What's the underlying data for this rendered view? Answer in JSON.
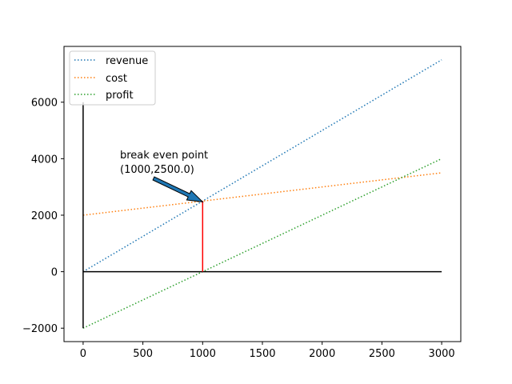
{
  "chart_data": {
    "type": "line",
    "title": "",
    "xlabel": "",
    "ylabel": "",
    "xlim": [
      -160,
      3160
    ],
    "ylim": [
      -2475,
      7975
    ],
    "x_ticks": [
      0,
      500,
      1000,
      1500,
      2000,
      2500,
      3000
    ],
    "x_tick_labels": [
      "0",
      "500",
      "1000",
      "1500",
      "2000",
      "2500",
      "3000"
    ],
    "y_ticks": [
      -2000,
      0,
      2000,
      4000,
      6000
    ],
    "y_tick_labels": [
      "−2000",
      "0",
      "2000",
      "4000",
      "6000"
    ],
    "grid": false,
    "legend_position": "upper-left",
    "series": [
      {
        "name": "revenue",
        "color": "#1f77b4",
        "style": "dotted",
        "x": [
          0,
          3000
        ],
        "y": [
          0,
          7500
        ]
      },
      {
        "name": "cost",
        "color": "#ff7f0e",
        "style": "dotted",
        "x": [
          0,
          3000
        ],
        "y": [
          2000,
          3500
        ]
      },
      {
        "name": "profit",
        "color": "#2ca02c",
        "style": "dotted",
        "x": [
          0,
          3000
        ],
        "y": [
          -2000,
          4000
        ]
      }
    ],
    "reference_lines": [
      {
        "color": "#000000",
        "x": [
          0,
          0
        ],
        "y": [
          -2000,
          6000
        ]
      },
      {
        "color": "#000000",
        "x": [
          0,
          3000
        ],
        "y": [
          0,
          0
        ]
      },
      {
        "color": "#ff0000",
        "x": [
          1000,
          1000
        ],
        "y": [
          0,
          2500
        ]
      }
    ],
    "annotation": {
      "line1": "break even point",
      "line2": "(1000,2500.0)",
      "point": [
        1000,
        2500
      ],
      "text_at": [
        300,
        3500
      ],
      "arrow_color": "#1f77b4"
    }
  }
}
